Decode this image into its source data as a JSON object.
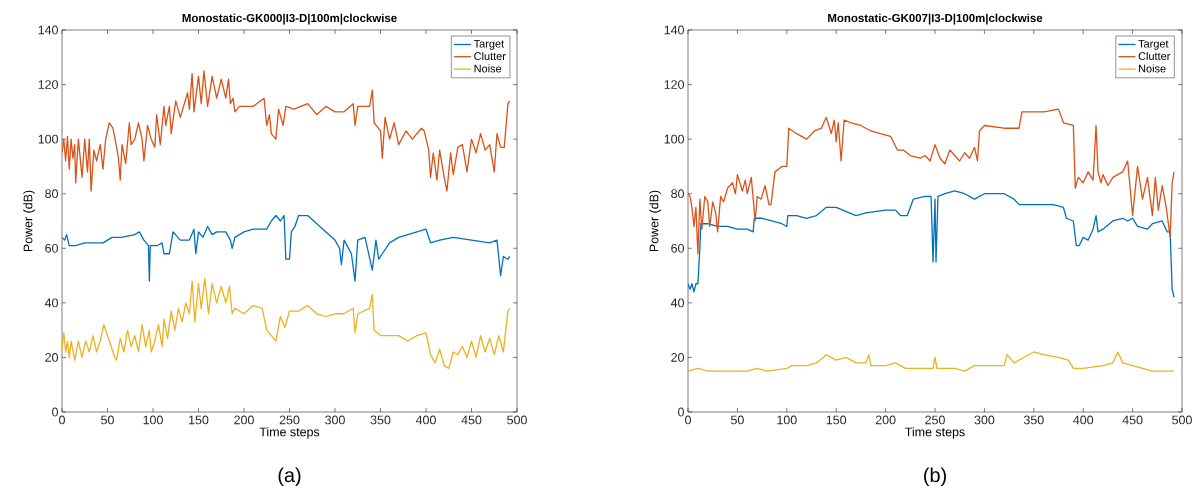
{
  "chart_data": [
    {
      "type": "line",
      "title": "Monostatic-GK000|I3-D|100m|clockwise",
      "xlabel": "Time steps",
      "ylabel": "Power (dB)",
      "xlim": [
        0,
        500
      ],
      "ylim": [
        0,
        140
      ],
      "xticks": [
        0,
        50,
        100,
        150,
        200,
        250,
        300,
        350,
        400,
        450,
        500
      ],
      "yticks": [
        0,
        20,
        40,
        60,
        80,
        100,
        120,
        140
      ],
      "legend": "top right",
      "grid": false,
      "annotations": [
        "(a)"
      ],
      "series": [
        {
          "name": "Target",
          "color": "#0072bd",
          "x": [
            0,
            3,
            5,
            8,
            15,
            25,
            35,
            45,
            55,
            65,
            80,
            85,
            90,
            95,
            96,
            97,
            105,
            110,
            112,
            118,
            122,
            130,
            140,
            145,
            147,
            150,
            155,
            160,
            165,
            170,
            180,
            185,
            187,
            190,
            200,
            210,
            225,
            230,
            235,
            240,
            244,
            246,
            250,
            252,
            256,
            260,
            270,
            280,
            290,
            300,
            305,
            307,
            310,
            318,
            322,
            325,
            333,
            337,
            341,
            345,
            348,
            352,
            360,
            370,
            380,
            400,
            405,
            415,
            430,
            450,
            470,
            478,
            482,
            485,
            490,
            492
          ],
          "values": [
            64,
            63,
            65,
            61,
            61,
            62,
            62,
            62,
            64,
            64,
            65,
            66,
            63,
            61,
            48,
            61,
            61,
            62,
            58,
            58,
            66,
            63,
            63,
            67,
            58,
            66,
            64,
            68,
            65,
            66,
            66,
            63,
            60,
            64,
            66,
            67,
            67,
            70,
            72,
            70,
            72,
            56,
            56,
            66,
            68,
            72,
            72,
            69,
            66,
            63,
            60,
            54,
            63,
            58,
            48,
            63,
            64,
            58,
            52,
            63,
            56,
            58,
            62,
            64,
            65,
            67,
            62,
            63,
            64,
            63,
            62,
            63,
            50,
            57,
            56,
            57
          ]
        },
        {
          "name": "Clutter",
          "color": "#d95319",
          "x": [
            0,
            2,
            4,
            6,
            8,
            10,
            12,
            14,
            15,
            18,
            22,
            25,
            28,
            30,
            32,
            35,
            38,
            42,
            45,
            48,
            52,
            56,
            60,
            62,
            64,
            66,
            70,
            74,
            76,
            80,
            84,
            88,
            90,
            94,
            98,
            102,
            104,
            108,
            112,
            114,
            118,
            120,
            125,
            130,
            138,
            140,
            143,
            145,
            150,
            153,
            156,
            160,
            165,
            170,
            175,
            180,
            183,
            185,
            188,
            190,
            195,
            210,
            222,
            225,
            228,
            230,
            235,
            238,
            243,
            246,
            255,
            270,
            280,
            290,
            300,
            310,
            320,
            322,
            325,
            338,
            341,
            343,
            350,
            352,
            355,
            360,
            365,
            370,
            378,
            385,
            395,
            398,
            403,
            405,
            408,
            412,
            415,
            420,
            423,
            427,
            430,
            435,
            440,
            445,
            450,
            455,
            460,
            465,
            470,
            475,
            478,
            482,
            486,
            490,
            492
          ],
          "values": [
            95,
            100,
            92,
            101,
            89,
            100,
            93,
            98,
            84,
            100,
            86,
            100,
            88,
            100,
            81,
            96,
            92,
            98,
            89,
            100,
            106,
            104,
            97,
            93,
            85,
            98,
            91,
            106,
            98,
            100,
            106,
            100,
            92,
            105,
            100,
            97,
            109,
            98,
            112,
            105,
            112,
            102,
            114,
            108,
            117,
            111,
            124,
            110,
            123,
            113,
            125,
            112,
            123,
            115,
            122,
            115,
            122,
            113,
            115,
            110,
            112,
            112,
            115,
            105,
            109,
            102,
            100,
            111,
            105,
            112,
            111,
            113,
            109,
            112,
            110,
            110,
            113,
            105,
            112,
            112,
            118,
            106,
            103,
            93,
            108,
            100,
            106,
            98,
            103,
            100,
            104,
            103,
            96,
            86,
            95,
            85,
            96,
            86,
            81,
            95,
            87,
            97,
            98,
            88,
            100,
            95,
            102,
            96,
            98,
            88,
            102,
            97,
            97,
            113,
            114
          ]
        },
        {
          "name": "Noise",
          "color": "#edb120",
          "x": [
            0,
            2,
            4,
            6,
            8,
            10,
            14,
            18,
            22,
            26,
            30,
            34,
            38,
            42,
            46,
            50,
            54,
            58,
            60,
            64,
            68,
            72,
            76,
            80,
            84,
            88,
            92,
            96,
            98,
            102,
            106,
            110,
            112,
            116,
            120,
            124,
            128,
            132,
            136,
            140,
            143,
            146,
            150,
            153,
            157,
            161,
            165,
            170,
            175,
            180,
            184,
            187,
            190,
            200,
            210,
            220,
            225,
            230,
            235,
            240,
            245,
            250,
            260,
            270,
            280,
            290,
            300,
            310,
            320,
            322,
            325,
            338,
            341,
            343,
            350,
            360,
            370,
            380,
            390,
            400,
            405,
            410,
            415,
            420,
            425,
            430,
            435,
            440,
            445,
            450,
            455,
            460,
            465,
            470,
            475,
            480,
            485,
            490,
            492
          ],
          "values": [
            23,
            29,
            22,
            26,
            20,
            26,
            19,
            26,
            20,
            26,
            22,
            28,
            22,
            26,
            32,
            28,
            24,
            20,
            19,
            27,
            22,
            30,
            24,
            28,
            22,
            32,
            24,
            30,
            22,
            26,
            32,
            24,
            34,
            27,
            37,
            30,
            38,
            33,
            40,
            36,
            48,
            33,
            47,
            38,
            49,
            36,
            47,
            40,
            46,
            40,
            46,
            36,
            38,
            36,
            39,
            38,
            30,
            28,
            26,
            35,
            31,
            37,
            37,
            39,
            36,
            35,
            36,
            36,
            38,
            29,
            36,
            38,
            43,
            30,
            28,
            28,
            28,
            26,
            28,
            29,
            21,
            18,
            23,
            17,
            16,
            22,
            21,
            24,
            20,
            26,
            20,
            28,
            22,
            27,
            21,
            28,
            22,
            37,
            38
          ]
        }
      ]
    },
    {
      "type": "line",
      "title": "Monostatic-GK007|I3-D|100m|clockwise",
      "xlabel": "Time steps",
      "ylabel": "Power (dB)",
      "xlim": [
        0,
        500
      ],
      "ylim": [
        0,
        140
      ],
      "xticks": [
        0,
        50,
        100,
        150,
        200,
        250,
        300,
        350,
        400,
        450,
        500
      ],
      "yticks": [
        0,
        20,
        40,
        60,
        80,
        100,
        120,
        140
      ],
      "legend": "top right",
      "grid": false,
      "annotations": [
        "(b)"
      ],
      "series": [
        {
          "name": "Target",
          "color": "#0072bd",
          "x": [
            0,
            2,
            4,
            6,
            8,
            10,
            12,
            13,
            20,
            30,
            40,
            50,
            60,
            66,
            67,
            75,
            85,
            95,
            100,
            101,
            110,
            120,
            130,
            140,
            150,
            170,
            180,
            200,
            210,
            215,
            222,
            228,
            240,
            246,
            248,
            250,
            251,
            253,
            260,
            270,
            280,
            290,
            300,
            320,
            330,
            335,
            350,
            370,
            380,
            383,
            390,
            393,
            396,
            400,
            405,
            410,
            413,
            415,
            420,
            430,
            440,
            445,
            450,
            455,
            465,
            470,
            480,
            485,
            488,
            490,
            492
          ],
          "values": [
            47,
            45,
            47,
            44,
            47,
            47,
            60,
            69,
            69,
            68,
            68,
            67,
            67,
            66,
            71,
            71,
            70,
            69,
            68,
            72,
            72,
            71,
            72,
            75,
            75,
            72,
            73,
            74,
            74,
            72,
            72,
            78,
            79,
            79,
            55,
            78,
            55,
            79,
            80,
            81,
            80,
            78,
            80,
            80,
            78,
            76,
            76,
            76,
            75,
            71,
            70,
            61,
            61,
            64,
            63,
            67,
            72,
            66,
            67,
            70,
            71,
            70,
            71,
            68,
            67,
            69,
            70,
            66,
            66,
            45,
            42
          ]
        },
        {
          "name": "Clutter",
          "color": "#d95319",
          "x": [
            0,
            2,
            4,
            6,
            8,
            10,
            12,
            14,
            17,
            20,
            22,
            25,
            28,
            30,
            33,
            36,
            40,
            45,
            48,
            50,
            55,
            58,
            60,
            64,
            68,
            70,
            74,
            78,
            82,
            84,
            88,
            95,
            100,
            102,
            110,
            120,
            128,
            135,
            140,
            145,
            148,
            150,
            152,
            155,
            158,
            165,
            175,
            185,
            195,
            205,
            212,
            218,
            225,
            235,
            240,
            245,
            250,
            255,
            260,
            265,
            270,
            275,
            280,
            285,
            290,
            293,
            295,
            300,
            320,
            335,
            338,
            360,
            375,
            380,
            390,
            392,
            395,
            400,
            405,
            410,
            413,
            415,
            418,
            420,
            425,
            430,
            440,
            445,
            450,
            455,
            460,
            465,
            470,
            473,
            476,
            480,
            484,
            488,
            490,
            492
          ],
          "values": [
            80,
            79,
            75,
            68,
            75,
            58,
            78,
            67,
            79,
            77,
            68,
            77,
            73,
            66,
            79,
            77,
            82,
            84,
            80,
            87,
            81,
            85,
            80,
            86,
            70,
            79,
            78,
            83,
            76,
            76,
            88,
            90,
            90,
            104,
            102,
            100,
            103,
            104,
            108,
            102,
            107,
            99,
            106,
            92,
            107,
            106,
            105,
            103,
            102,
            101,
            96,
            96,
            94,
            93,
            94,
            92,
            98,
            93,
            91,
            96,
            94,
            92,
            95,
            93,
            97,
            92,
            103,
            105,
            104,
            104,
            110,
            110,
            111,
            106,
            105,
            82,
            86,
            84,
            88,
            85,
            105,
            88,
            84,
            87,
            83,
            86,
            88,
            92,
            72,
            90,
            78,
            86,
            72,
            86,
            74,
            83,
            75,
            64,
            84,
            88
          ]
        },
        {
          "name": "Noise",
          "color": "#edb120",
          "x": [
            0,
            10,
            20,
            40,
            60,
            70,
            80,
            100,
            105,
            120,
            130,
            140,
            150,
            160,
            170,
            180,
            183,
            185,
            200,
            210,
            220,
            240,
            248,
            250,
            252,
            270,
            280,
            290,
            300,
            320,
            323,
            330,
            340,
            350,
            360,
            375,
            385,
            390,
            400,
            420,
            430,
            435,
            440,
            450,
            460,
            470,
            480,
            492
          ],
          "values": [
            15,
            16,
            15,
            15,
            15,
            16,
            15,
            16,
            17,
            17,
            18,
            21,
            19,
            20,
            18,
            18,
            21,
            17,
            17,
            18,
            16,
            16,
            16,
            20,
            16,
            16,
            15,
            17,
            17,
            17,
            21,
            18,
            20,
            22,
            21,
            20,
            19,
            16,
            16,
            17,
            18,
            22,
            18,
            17,
            16,
            15,
            15,
            15
          ]
        }
      ]
    }
  ]
}
